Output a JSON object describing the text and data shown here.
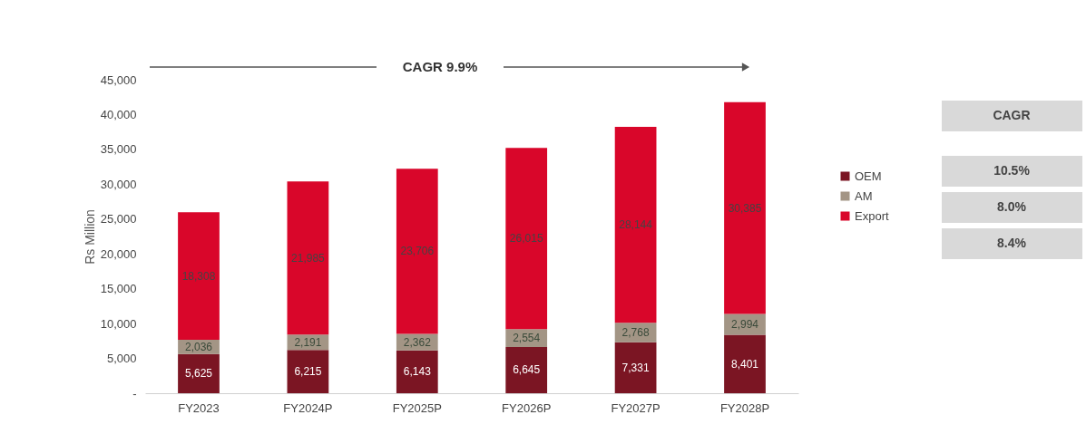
{
  "chart_data": {
    "type": "bar",
    "stacked": true,
    "ylabel": "Rs Million",
    "categories": [
      "FY2023",
      "FY2024P",
      "FY2025P",
      "FY2026P",
      "FY2027P",
      "FY2028P"
    ],
    "series": [
      {
        "name": "OEM",
        "color": "#7b1523",
        "values": [
          5625,
          6215,
          6143,
          6645,
          7331,
          8401
        ],
        "value_labels": [
          "5,625",
          "6,215",
          "6,143",
          "6,645",
          "7,331",
          "8,401"
        ]
      },
      {
        "name": "AM",
        "color": "#a39585",
        "values": [
          2036,
          2191,
          2362,
          2554,
          2768,
          2994
        ],
        "value_labels": [
          "2,036",
          "2,191",
          "2,362",
          "2,554",
          "2,768",
          "2,994"
        ]
      },
      {
        "name": "Export",
        "color": "#d9062a",
        "values": [
          18308,
          21985,
          23706,
          26015,
          28144,
          30385
        ],
        "value_labels": [
          "18,308",
          "21,985",
          "23,706",
          "26,015",
          "28,144",
          "30,385"
        ]
      }
    ],
    "ylim": [
      0,
      45000
    ],
    "yticks": [
      {
        "value": 0,
        "label": "-"
      },
      {
        "value": 5000,
        "label": "5,000"
      },
      {
        "value": 10000,
        "label": "10,000"
      },
      {
        "value": 15000,
        "label": "15,000"
      },
      {
        "value": 20000,
        "label": "20,000"
      },
      {
        "value": 25000,
        "label": "25,000"
      },
      {
        "value": 30000,
        "label": "30,000"
      },
      {
        "value": 35000,
        "label": "35,000"
      },
      {
        "value": 40000,
        "label": "40,000"
      },
      {
        "value": 45000,
        "label": "45,000"
      }
    ],
    "grid": false,
    "legend": "right",
    "annotations": [
      "CAGR 9.9%",
      "CAGR",
      "10.5%",
      "8.0%",
      "8.4%"
    ]
  }
}
